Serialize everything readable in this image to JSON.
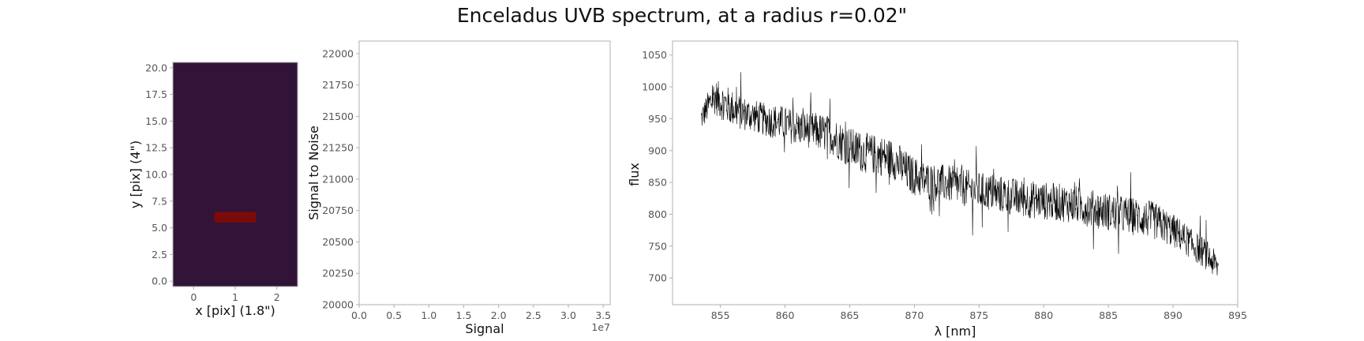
{
  "figure": {
    "title": "Enceladus UVB spectrum, at a radius r=0.02\""
  },
  "chart_data": [
    {
      "type": "heatmap",
      "xlabel": "x [pix] (1.8\")",
      "ylabel": "y [pix] (4\")",
      "xlim": [
        -0.5,
        2.5
      ],
      "ylim": [
        -0.5,
        20.5
      ],
      "xticks": [
        0,
        1,
        2
      ],
      "yticks": [
        "0.0",
        "2.5",
        "5.0",
        "7.5",
        "10.0",
        "12.5",
        "15.0",
        "17.5",
        "20.0"
      ],
      "background_color": "#311437",
      "highlight": {
        "x0": 0.5,
        "x1": 1.5,
        "y0": 5.5,
        "y1": 6.5,
        "color": "#7b0a0a"
      },
      "grid": false
    },
    {
      "type": "scatter",
      "xlabel": "Signal",
      "ylabel": "Signal to Noise",
      "xlim": [
        0,
        36000000
      ],
      "ylim": [
        20000,
        22100
      ],
      "xticks": [
        "0.0",
        "0.5",
        "1.0",
        "1.5",
        "2.0",
        "2.5",
        "3.0",
        "3.5"
      ],
      "x_offset_label": "1e7",
      "yticks": [
        "20000",
        "20250",
        "20500",
        "20750",
        "21000",
        "21250",
        "21500",
        "21750",
        "22000"
      ],
      "points": [],
      "grid": false
    },
    {
      "type": "line",
      "xlabel": "λ [nm]",
      "ylabel": "flux",
      "xlim": [
        851.3,
        895.0
      ],
      "ylim": [
        658,
        1072
      ],
      "xticks": [
        "855",
        "860",
        "865",
        "870",
        "875",
        "880",
        "885",
        "890",
        "895"
      ],
      "yticks": [
        "700",
        "750",
        "800",
        "850",
        "900",
        "950",
        "1000",
        "1050"
      ],
      "line_color": "#000000",
      "series": [
        {
          "x": [
            853.5,
            854.5,
            855.5,
            856.5,
            857.5,
            858.5,
            859.5,
            860.5,
            861.5,
            862.5,
            863.5,
            864.5,
            865.5,
            866.5,
            867.5,
            868.5,
            869.5,
            870.5,
            871.5,
            872.5,
            873.5,
            874.5,
            875.5,
            876.5,
            877.5,
            878.5,
            879.5,
            880.5,
            881.5,
            882.5,
            883.5,
            884.5,
            885.5,
            886.5,
            887.5,
            888.5,
            889.5,
            890.5,
            891.5,
            892.5,
            893.5
          ],
          "y": [
            950,
            985,
            972,
            960,
            955,
            948,
            945,
            938,
            934,
            930,
            925,
            912,
            900,
            895,
            892,
            885,
            865,
            855,
            850,
            848,
            844,
            838,
            835,
            832,
            828,
            824,
            822,
            820,
            818,
            815,
            810,
            806,
            802,
            798,
            795,
            790,
            780,
            768,
            752,
            738,
            715
          ],
          "noise": [
            20,
            28,
            30,
            28,
            26,
            26,
            28,
            28,
            28,
            30,
            30,
            32,
            32,
            32,
            32,
            32,
            32,
            30,
            30,
            30,
            30,
            30,
            30,
            30,
            30,
            30,
            30,
            30,
            30,
            30,
            30,
            30,
            30,
            30,
            30,
            30,
            28,
            26,
            24,
            24,
            22
          ]
        }
      ],
      "grid": false
    }
  ]
}
